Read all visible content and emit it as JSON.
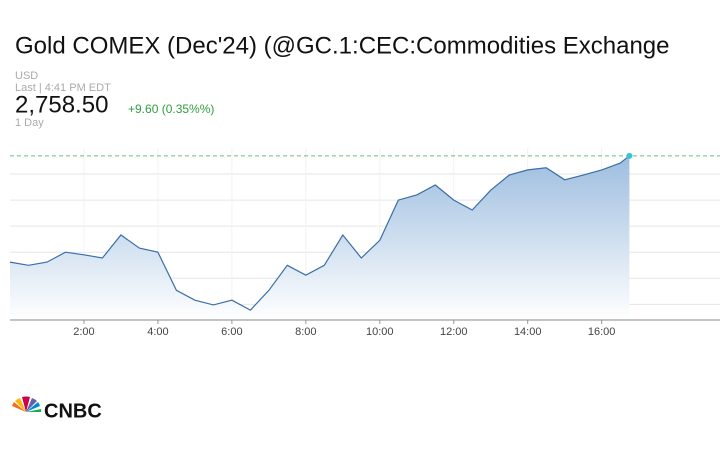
{
  "chart_data": {
    "type": "line",
    "title": "Gold COMEX (Dec'24) (@GC.1:CEC:Commodities Exchange",
    "currency": "USD",
    "timestamp": "Last | 4:41 PM EDT",
    "last_price": "2,758.50",
    "change": "+9.60 (0.35%%)",
    "range": "1 Day",
    "brand": "CNBC",
    "x": [
      0,
      0.5,
      1,
      1.5,
      2,
      2.5,
      3,
      3.5,
      4,
      4.5,
      5,
      5.5,
      6,
      6.5,
      7,
      7.5,
      8,
      8.5,
      9,
      9.5,
      10,
      10.5,
      11,
      11.5,
      12,
      12.5,
      13,
      13.5,
      14,
      14.5,
      15,
      15.5,
      16,
      16.5,
      16.75
    ],
    "series": [
      {
        "name": "Gold",
        "color": "#3a6ea8",
        "values": [
          2738.1,
          2737.5,
          2738.1,
          2740.0,
          2739.5,
          2738.9,
          2743.3,
          2740.8,
          2740.0,
          2732.7,
          2730.8,
          2729.9,
          2730.8,
          2728.9,
          2732.7,
          2737.5,
          2735.6,
          2737.5,
          2743.3,
          2738.9,
          2742.3,
          2750.0,
          2751.0,
          2752.9,
          2750.0,
          2748.1,
          2751.9,
          2754.8,
          2755.8,
          2756.2,
          2753.9,
          2754.8,
          2755.8,
          2757.1,
          2758.5
        ]
      }
    ],
    "reference_line": 2758.5,
    "xlim": [
      0,
      19.2
    ],
    "xticks": [
      {
        "value": 2,
        "label": "2:00"
      },
      {
        "value": 4,
        "label": "4:00"
      },
      {
        "value": 6,
        "label": "6:00"
      },
      {
        "value": 8,
        "label": "8:00"
      },
      {
        "value": 10,
        "label": "10:00"
      },
      {
        "value": 12,
        "label": "12:00"
      },
      {
        "value": 14,
        "label": "14:00"
      },
      {
        "value": 16,
        "label": "16:00"
      }
    ],
    "ylim": [
      2727,
      2760
    ],
    "yticks": [
      2730,
      2735,
      2740,
      2745,
      2750,
      2755
    ],
    "grid": true
  }
}
